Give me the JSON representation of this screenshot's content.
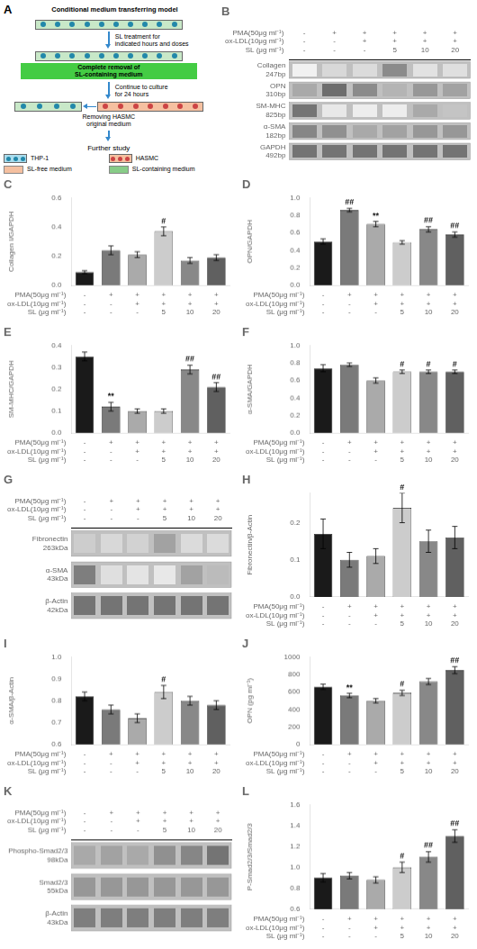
{
  "chart_data": [
    {
      "type": "diagram",
      "title": "A",
      "subtitle": "Conditional medium transferring model",
      "annotations": [
        "SL treatment for\nindicated hours and doses",
        "Complete removal of\nSL-containing medium",
        "Continue to culture\nfor 24 hours",
        "Removing HASMC\noriginal medium",
        "Further study"
      ],
      "series": [
        {
          "name": "THP-1",
          "color": "#aaddee"
        },
        {
          "name": "HASMC",
          "color": "#f5c0a0"
        },
        {
          "name": "SL-free medium",
          "color": "#f5c0a0"
        },
        {
          "name": "SL-containing medium",
          "color": "#88cc88"
        }
      ]
    },
    {
      "type": "heatmap",
      "title": "B",
      "grid": false,
      "categories": [
        [
          "-",
          "-",
          "-"
        ],
        [
          "+",
          "-",
          "-"
        ],
        [
          "+",
          "+",
          "-"
        ],
        [
          "+",
          "+",
          "5"
        ],
        [
          "+",
          "+",
          "10"
        ],
        [
          "+",
          "+",
          "20"
        ]
      ],
      "x_label": [
        "PMA(50μg ml⁻¹)",
        "ox-LDL(10μg ml⁻¹)",
        "SL (μg ml⁻¹)"
      ],
      "y_categories": [
        "Collagen\n247bp",
        "OPN\n310bp",
        "SM-MHC\n825bp",
        "α-SMA\n182bp",
        "GAPDH\n492bp"
      ],
      "values": [
        [
          0.08,
          0.22,
          0.2,
          0.65,
          0.16,
          0.18
        ],
        [
          0.48,
          0.82,
          0.65,
          0.42,
          0.58,
          0.52
        ],
        [
          0.78,
          0.13,
          0.1,
          0.1,
          0.48,
          0.33
        ],
        [
          0.68,
          0.62,
          0.48,
          0.52,
          0.58,
          0.58
        ],
        [
          0.78,
          0.78,
          0.78,
          0.78,
          0.78,
          0.78
        ]
      ]
    },
    {
      "type": "bar",
      "title": "C",
      "y_label": "Collagen I/GAPDH",
      "grid": false,
      "categories": [
        [
          "-",
          "-",
          "-"
        ],
        [
          "+",
          "-",
          "-"
        ],
        [
          "+",
          "+",
          "-"
        ],
        [
          "+",
          "+",
          "5"
        ],
        [
          "+",
          "+",
          "10"
        ],
        [
          "+",
          "+",
          "20"
        ]
      ],
      "x_label": [
        "PMA(50μg ml⁻¹)",
        "ox-LDL(10μg ml⁻¹)",
        "SL (μg ml⁻¹)"
      ],
      "values": [
        0.09,
        0.24,
        0.21,
        0.37,
        0.17,
        0.19
      ],
      "errors": [
        0.01,
        0.03,
        0.02,
        0.03,
        0.02,
        0.02
      ],
      "colors": [
        "#1a1a1a",
        "#7a7a7a",
        "#aaaaaa",
        "#cccccc",
        "#888888",
        "#606060"
      ],
      "ylim": [
        0,
        0.6
      ],
      "yticks": [
        {
          "value": 0,
          "label": "0.0"
        },
        0.2,
        0.4,
        0.6
      ],
      "annotations": [
        {
          "index": 3,
          "text": "#"
        }
      ]
    },
    {
      "type": "bar",
      "title": "D",
      "y_label": "OPN/GAPDH",
      "grid": false,
      "categories": [
        [
          "-",
          "-",
          "-"
        ],
        [
          "+",
          "-",
          "-"
        ],
        [
          "+",
          "+",
          "-"
        ],
        [
          "+",
          "+",
          "5"
        ],
        [
          "+",
          "+",
          "10"
        ],
        [
          "+",
          "+",
          "20"
        ]
      ],
      "x_label": [
        "PMA(50μg ml⁻¹)",
        "ox-LDL(10μg ml⁻¹)",
        "SL (μg ml⁻¹)"
      ],
      "values": [
        0.5,
        0.86,
        0.7,
        0.49,
        0.64,
        0.58
      ],
      "errors": [
        0.03,
        0.02,
        0.03,
        0.02,
        0.03,
        0.03
      ],
      "colors": [
        "#1a1a1a",
        "#7a7a7a",
        "#aaaaaa",
        "#cccccc",
        "#888888",
        "#606060"
      ],
      "ylim": [
        0,
        1.0
      ],
      "yticks": [
        {
          "value": 0,
          "label": "0.0"
        },
        0.2,
        0.4,
        0.6,
        0.8,
        {
          "value": 1,
          "label": "1.0"
        }
      ],
      "annotations": [
        {
          "index": 1,
          "text": "##"
        },
        {
          "index": 2,
          "text": "**"
        },
        {
          "index": 4,
          "text": "##"
        },
        {
          "index": 5,
          "text": "##"
        }
      ]
    },
    {
      "type": "bar",
      "title": "E",
      "y_label": "SM-MHC/GAPDH",
      "grid": false,
      "categories": [
        [
          "-",
          "-",
          "-"
        ],
        [
          "+",
          "-",
          "-"
        ],
        [
          "+",
          "+",
          "-"
        ],
        [
          "+",
          "+",
          "5"
        ],
        [
          "+",
          "+",
          "10"
        ],
        [
          "+",
          "+",
          "20"
        ]
      ],
      "x_label": [
        "PMA(50μg ml⁻¹)",
        "ox-LDL(10μg ml⁻¹)",
        "SL (μg ml⁻¹)"
      ],
      "values": [
        0.35,
        0.12,
        0.1,
        0.1,
        0.29,
        0.21
      ],
      "errors": [
        0.02,
        0.02,
        0.01,
        0.01,
        0.02,
        0.02
      ],
      "colors": [
        "#1a1a1a",
        "#7a7a7a",
        "#aaaaaa",
        "#cccccc",
        "#888888",
        "#606060"
      ],
      "ylim": [
        0,
        0.4
      ],
      "yticks": [
        {
          "value": 0,
          "label": "0.0"
        },
        0.1,
        0.2,
        0.3,
        0.4
      ],
      "annotations": [
        {
          "index": 1,
          "text": "**"
        },
        {
          "index": 4,
          "text": "##"
        },
        {
          "index": 5,
          "text": "##"
        }
      ]
    },
    {
      "type": "bar",
      "title": "F",
      "y_label": "α-SMA/GAPDH",
      "grid": false,
      "categories": [
        [
          "-",
          "-",
          "-"
        ],
        [
          "+",
          "-",
          "-"
        ],
        [
          "+",
          "+",
          "-"
        ],
        [
          "+",
          "+",
          "5"
        ],
        [
          "+",
          "+",
          "10"
        ],
        [
          "+",
          "+",
          "20"
        ]
      ],
      "x_label": [
        "PMA(50μg ml⁻¹)",
        "ox-LDL(10μg ml⁻¹)",
        "SL (μg ml⁻¹)"
      ],
      "values": [
        0.74,
        0.78,
        0.6,
        0.7,
        0.7,
        0.7
      ],
      "errors": [
        0.04,
        0.02,
        0.03,
        0.02,
        0.02,
        0.02
      ],
      "colors": [
        "#1a1a1a",
        "#7a7a7a",
        "#aaaaaa",
        "#cccccc",
        "#888888",
        "#606060"
      ],
      "ylim": [
        0,
        1.0
      ],
      "yticks": [
        {
          "value": 0,
          "label": "0.0"
        },
        0.2,
        0.4,
        0.6,
        0.8,
        {
          "value": 1,
          "label": "1.0"
        }
      ],
      "annotations": [
        {
          "index": 3,
          "text": "#"
        },
        {
          "index": 4,
          "text": "#"
        },
        {
          "index": 5,
          "text": "#"
        }
      ]
    },
    {
      "type": "heatmap",
      "title": "G",
      "grid": false,
      "categories": [
        [
          "-",
          "-",
          "-"
        ],
        [
          "+",
          "-",
          "-"
        ],
        [
          "+",
          "+",
          "-"
        ],
        [
          "+",
          "+",
          "5"
        ],
        [
          "+",
          "+",
          "10"
        ],
        [
          "+",
          "+",
          "20"
        ]
      ],
      "x_label": [
        "PMA(50μg ml⁻¹)",
        "ox-LDL(10μg ml⁻¹)",
        "SL (μg ml⁻¹)"
      ],
      "y_categories": [
        "Fibronectin\n263kDa",
        "α-SMA\n43kDa",
        "β-Actin\n42kDa"
      ],
      "values": [
        [
          0.28,
          0.22,
          0.25,
          0.52,
          0.2,
          0.2
        ],
        [
          0.72,
          0.18,
          0.15,
          0.13,
          0.52,
          0.38
        ],
        [
          0.78,
          0.78,
          0.78,
          0.78,
          0.78,
          0.78
        ]
      ]
    },
    {
      "type": "bar",
      "title": "H",
      "y_label": "Fibronectin/β-Actin",
      "grid": false,
      "categories": [
        [
          "-",
          "-",
          "-"
        ],
        [
          "+",
          "-",
          "-"
        ],
        [
          "+",
          "+",
          "-"
        ],
        [
          "+",
          "+",
          "5"
        ],
        [
          "+",
          "+",
          "10"
        ],
        [
          "+",
          "+",
          "20"
        ]
      ],
      "x_label": [
        "PMA(50μg ml⁻¹)",
        "ox-LDL(10μg ml⁻¹)",
        "SL (μg ml⁻¹)"
      ],
      "values": [
        0.17,
        0.1,
        0.11,
        0.24,
        0.15,
        0.16
      ],
      "errors": [
        0.04,
        0.02,
        0.02,
        0.04,
        0.03,
        0.03
      ],
      "colors": [
        "#1a1a1a",
        "#7a7a7a",
        "#aaaaaa",
        "#cccccc",
        "#888888",
        "#606060"
      ],
      "ylim": [
        0,
        0.28
      ],
      "yticks": [
        {
          "value": 0,
          "label": "0.0"
        },
        0.1,
        0.2
      ],
      "annotations": [
        {
          "index": 3,
          "text": "#"
        }
      ]
    },
    {
      "type": "bar",
      "title": "I",
      "y_label": "α-SMA/β-Actin",
      "grid": false,
      "categories": [
        [
          "-",
          "-",
          "-"
        ],
        [
          "+",
          "-",
          "-"
        ],
        [
          "+",
          "+",
          "-"
        ],
        [
          "+",
          "+",
          "5"
        ],
        [
          "+",
          "+",
          "10"
        ],
        [
          "+",
          "+",
          "20"
        ]
      ],
      "x_label": [
        "PMA(50μg ml⁻¹)",
        "ox-LDL(10μg ml⁻¹)",
        "SL (μg ml⁻¹)"
      ],
      "values": [
        0.82,
        0.76,
        0.72,
        0.84,
        0.8,
        0.78
      ],
      "errors": [
        0.02,
        0.02,
        0.02,
        0.03,
        0.02,
        0.02
      ],
      "colors": [
        "#1a1a1a",
        "#7a7a7a",
        "#aaaaaa",
        "#cccccc",
        "#888888",
        "#606060"
      ],
      "ylim": [
        0.6,
        1.0
      ],
      "yticks": [
        0.6,
        0.7,
        0.8,
        0.9,
        {
          "value": 1,
          "label": "1.0"
        }
      ],
      "annotations": [
        {
          "index": 3,
          "text": "#"
        }
      ]
    },
    {
      "type": "bar",
      "title": "J",
      "y_label": "OPN (pg ml⁻¹)",
      "grid": false,
      "categories": [
        [
          "-",
          "-",
          "-"
        ],
        [
          "+",
          "-",
          "-"
        ],
        [
          "+",
          "+",
          "-"
        ],
        [
          "+",
          "+",
          "5"
        ],
        [
          "+",
          "+",
          "10"
        ],
        [
          "+",
          "+",
          "20"
        ]
      ],
      "x_label": [
        "PMA(50μg ml⁻¹)",
        "ox-LDL(10μg ml⁻¹)",
        "SL (μg ml⁻¹)"
      ],
      "values": [
        660,
        560,
        500,
        590,
        720,
        850
      ],
      "errors": [
        30,
        25,
        25,
        30,
        35,
        40
      ],
      "colors": [
        "#1a1a1a",
        "#7a7a7a",
        "#aaaaaa",
        "#cccccc",
        "#888888",
        "#606060"
      ],
      "ylim": [
        0,
        1000
      ],
      "yticks": [
        0,
        200,
        400,
        600,
        800,
        1000
      ],
      "annotations": [
        {
          "index": 1,
          "text": "**"
        },
        {
          "index": 3,
          "text": "#"
        },
        {
          "index": 5,
          "text": "##"
        }
      ]
    },
    {
      "type": "heatmap",
      "title": "K",
      "grid": false,
      "categories": [
        [
          "-",
          "-",
          "-"
        ],
        [
          "+",
          "-",
          "-"
        ],
        [
          "+",
          "+",
          "-"
        ],
        [
          "+",
          "+",
          "5"
        ],
        [
          "+",
          "+",
          "10"
        ],
        [
          "+",
          "+",
          "20"
        ]
      ],
      "x_label": [
        "PMA(50μg ml⁻¹)",
        "ox-LDL(10μg ml⁻¹)",
        "SL (μg ml⁻¹)"
      ],
      "y_categories": [
        "Phospho-Smad2/3\n98kDa",
        "Smad2/3\n55kDa",
        "β-Actin\n43kDa"
      ],
      "values": [
        [
          0.48,
          0.52,
          0.48,
          0.62,
          0.68,
          0.78
        ],
        [
          0.58,
          0.58,
          0.58,
          0.58,
          0.58,
          0.58
        ],
        [
          0.72,
          0.72,
          0.72,
          0.72,
          0.72,
          0.72
        ]
      ]
    },
    {
      "type": "bar",
      "title": "L",
      "y_label": "P-Smad2/3/Smad2/3",
      "grid": false,
      "categories": [
        [
          "-",
          "-",
          "-"
        ],
        [
          "+",
          "-",
          "-"
        ],
        [
          "+",
          "+",
          "-"
        ],
        [
          "+",
          "+",
          "5"
        ],
        [
          "+",
          "+",
          "10"
        ],
        [
          "+",
          "+",
          "20"
        ]
      ],
      "x_label": [
        "PMA(50μg ml⁻¹)",
        "ox-LDL(10μg ml⁻¹)",
        "SL (μg ml⁻¹)"
      ],
      "values": [
        0.9,
        0.92,
        0.88,
        1.0,
        1.1,
        1.3
      ],
      "errors": [
        0.04,
        0.03,
        0.03,
        0.05,
        0.05,
        0.06
      ],
      "colors": [
        "#1a1a1a",
        "#7a7a7a",
        "#aaaaaa",
        "#cccccc",
        "#888888",
        "#606060"
      ],
      "ylim": [
        0.6,
        1.6
      ],
      "yticks": [
        0.6,
        0.8,
        {
          "value": 1,
          "label": "1.0"
        },
        1.2,
        1.4,
        1.6
      ],
      "annotations": [
        {
          "index": 3,
          "text": "#"
        },
        {
          "index": 4,
          "text": "##"
        },
        {
          "index": 5,
          "text": "##"
        }
      ]
    }
  ]
}
